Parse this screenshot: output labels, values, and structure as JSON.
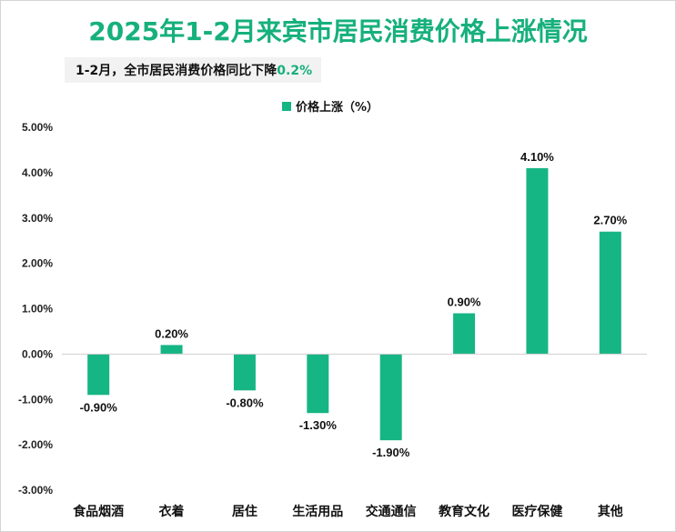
{
  "title": "2025年1-2月来宾市居民消费价格上涨情况",
  "subtitle": {
    "text": "1-2月，全市居民消费价格同比下降",
    "highlight": "0.2%"
  },
  "colors": {
    "accent": "#16b07c",
    "bar": "#16b584"
  },
  "chart_data": {
    "type": "bar",
    "categories": [
      "食品烟酒",
      "衣着",
      "居住",
      "生活用品",
      "交通通信",
      "教育文化",
      "医疗保健",
      "其他"
    ],
    "series": [
      {
        "name": "价格上涨（%）",
        "values": [
          -0.9,
          0.2,
          -0.8,
          -1.3,
          -1.9,
          0.9,
          4.1,
          2.7
        ],
        "labels": [
          "-0.90%",
          "0.20%",
          "-0.80%",
          "-1.30%",
          "-1.90%",
          "0.90%",
          "4.10%",
          "2.70%"
        ]
      }
    ],
    "ylim": [
      -3,
      5
    ],
    "yticks": [
      5,
      4,
      3,
      2,
      1,
      0,
      -1,
      -2,
      -3
    ],
    "ytick_labels": [
      "5.00%",
      "4.00%",
      "3.00%",
      "2.00%",
      "1.00%",
      "0.00%",
      "-1.00%",
      "-2.00%",
      "-3.00%"
    ],
    "legend": "top-center",
    "grid": false
  }
}
